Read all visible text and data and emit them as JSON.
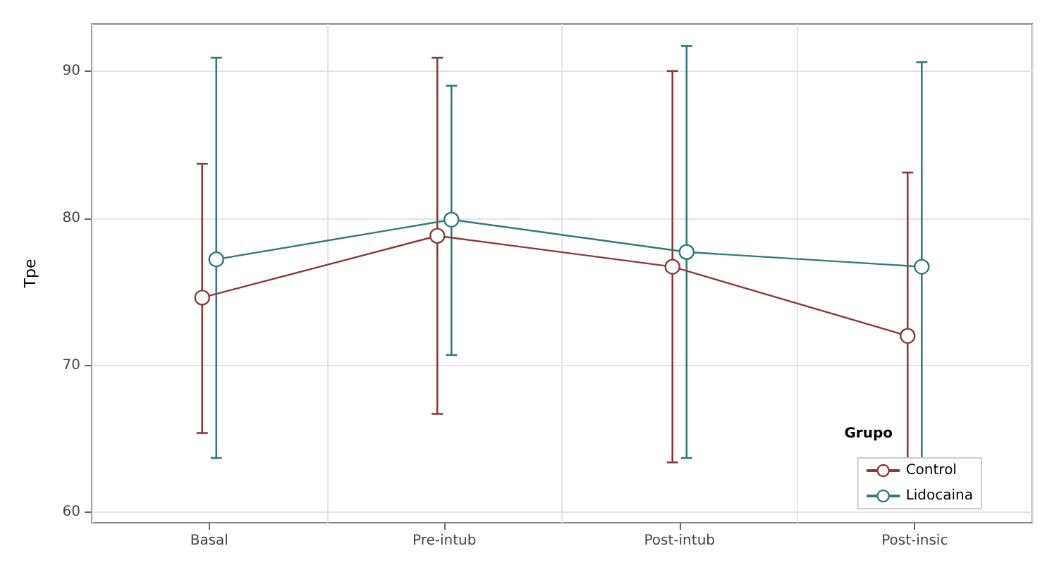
{
  "chart_data": {
    "type": "line",
    "ylabel": "Tpe",
    "legend_title": "Grupo",
    "categories": [
      "Basal",
      "Pre-intub",
      "Post-intub",
      "Post-insic"
    ],
    "series": [
      {
        "name": "Control",
        "color": "#8b3a3a",
        "values": [
          74.6,
          78.8,
          76.7,
          72.0
        ],
        "errors": [
          [
            65.4,
            83.7
          ],
          [
            66.7,
            90.9
          ],
          [
            63.4,
            90.0
          ],
          [
            60.9,
            83.1
          ]
        ]
      },
      {
        "name": "Lidocaina",
        "color": "#2e7b7b",
        "values": [
          77.2,
          79.9,
          77.7,
          76.7
        ],
        "errors": [
          [
            63.7,
            90.9
          ],
          [
            70.7,
            89.0
          ],
          [
            63.7,
            91.7
          ],
          [
            62.8,
            90.6
          ]
        ]
      }
    ],
    "ylim": [
      59.3,
      93.2
    ],
    "yticks": [
      60,
      70,
      80,
      90
    ],
    "grid": true,
    "legend": "bottom right",
    "marker": "circle",
    "line_style": "solid"
  }
}
